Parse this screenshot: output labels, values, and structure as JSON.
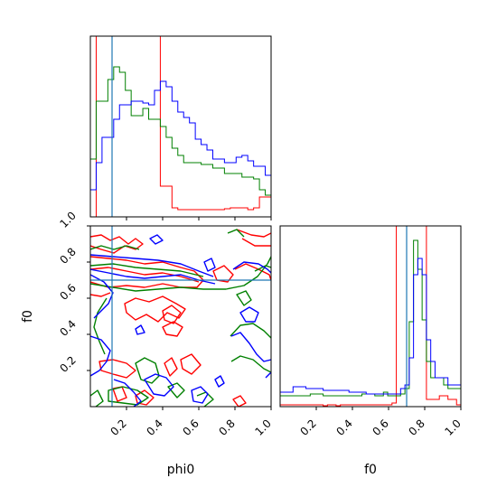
{
  "chart_data": {
    "type": "corner",
    "parameters": [
      "phi0",
      "f0"
    ],
    "axis_range": {
      "phi0": [
        0.0,
        1.0
      ],
      "f0": [
        0.0,
        1.0
      ]
    },
    "ticks": [
      0.2,
      0.4,
      0.6,
      0.8,
      1.0
    ],
    "tick_labels": [
      "0.2",
      "0.4",
      "0.6",
      "0.8",
      "1.0"
    ],
    "xlabels": {
      "phi0": "phi0",
      "f0": "f0"
    },
    "ylabels": {
      "f0": "f0"
    },
    "truths": {
      "phi0": 0.12,
      "f0": 0.7
    },
    "truth_color": "#1f77b4",
    "grid": false,
    "series": [
      {
        "color": "#ff0000",
        "hist_phi0": [
          0,
          1.15,
          1.15,
          1.15,
          1.15,
          1.15,
          1.15,
          1.15,
          1.15,
          1.15,
          1.15,
          1.15,
          0.17,
          0.17,
          0.05,
          0.04,
          0.04,
          0.04,
          0.04,
          0.04,
          0.04,
          0.04,
          0.04,
          0.045,
          0.05,
          0.05,
          0.05,
          0.04,
          0.05,
          0.11,
          0.11
        ],
        "hist_f0": [
          0.01,
          0.01,
          0.01,
          0.01,
          0.01,
          0.01,
          0.01,
          0.01,
          0.01,
          0.01,
          0.005,
          0.01,
          0.01,
          0.005,
          0.01,
          0.01,
          0.01,
          0.01,
          0.01,
          0.01,
          0.01,
          0.01,
          0.01,
          0.01,
          0.01,
          0.01,
          0.02,
          1.15,
          1.15,
          1.15,
          1.15,
          1.15,
          1.15,
          1.15,
          0.04,
          0.04,
          0.04,
          0.06,
          0.06,
          0.04,
          0.04,
          0.01
        ]
      },
      {
        "color": "#008000",
        "hist_phi0": [
          0.32,
          0.64,
          0.64,
          0.76,
          0.83,
          0.8,
          0.7,
          0.56,
          0.56,
          0.6,
          0.54,
          0.54,
          0.5,
          0.44,
          0.38,
          0.34,
          0.3,
          0.3,
          0.3,
          0.29,
          0.29,
          0.27,
          0.27,
          0.24,
          0.24,
          0.24,
          0.22,
          0.22,
          0.21,
          0.15,
          0.12
        ],
        "hist_f0": [
          0.06,
          0.06,
          0.06,
          0.06,
          0.06,
          0.06,
          0.06,
          0.07,
          0.07,
          0.07,
          0.06,
          0.06,
          0.06,
          0.06,
          0.06,
          0.06,
          0.06,
          0.06,
          0.06,
          0.07,
          0.07,
          0.07,
          0.06,
          0.06,
          0.08,
          0.06,
          0.06,
          0.06,
          0.07,
          0.1,
          0.47,
          0.92,
          0.76,
          0.48,
          0.25,
          0.16,
          0.16,
          0.16,
          0.12,
          0.1,
          0.1,
          0.1
        ]
      },
      {
        "color": "#0000ff",
        "hist_phi0": [
          0.15,
          0.3,
          0.44,
          0.44,
          0.54,
          0.62,
          0.62,
          0.64,
          0.64,
          0.63,
          0.62,
          0.7,
          0.75,
          0.72,
          0.64,
          0.58,
          0.55,
          0.52,
          0.43,
          0.4,
          0.37,
          0.32,
          0.32,
          0.3,
          0.3,
          0.33,
          0.34,
          0.31,
          0.28,
          0.28,
          0.23
        ],
        "hist_f0": [
          0.08,
          0.08,
          0.08,
          0.11,
          0.11,
          0.11,
          0.1,
          0.1,
          0.1,
          0.1,
          0.09,
          0.09,
          0.09,
          0.09,
          0.09,
          0.09,
          0.08,
          0.08,
          0.08,
          0.08,
          0.07,
          0.07,
          0.07,
          0.07,
          0.07,
          0.07,
          0.07,
          0.07,
          0.1,
          0.12,
          0.27,
          0.73,
          0.82,
          0.73,
          0.37,
          0.25,
          0.16,
          0.16,
          0.16,
          0.12,
          0.12,
          0.12
        ]
      }
    ]
  }
}
